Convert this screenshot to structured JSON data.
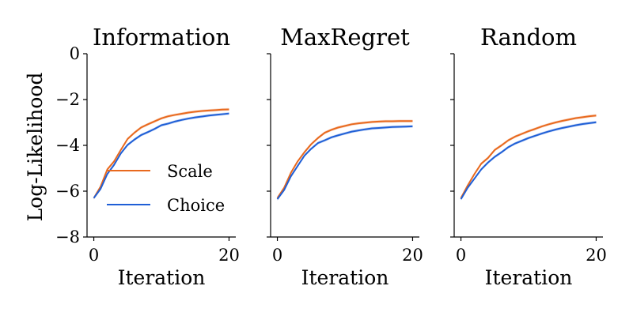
{
  "chart_data": [
    {
      "type": "line",
      "title": "Information",
      "xlabel": "Iteration",
      "ylabel": "Log-Likelihood",
      "xlim": [
        -1,
        21
      ],
      "ylim": [
        -8,
        0
      ],
      "xticks": [
        0,
        20
      ],
      "yticks": [
        0,
        -2,
        -4,
        -6,
        -8
      ],
      "ytick_labels": [
        "0",
        "−2",
        "−4",
        "−6",
        "−8"
      ],
      "xtick_labels": [
        "0",
        "20"
      ],
      "show_ytick_labels": true,
      "legend": {
        "position": "lower-right",
        "entries": [
          "Scale",
          "Choice"
        ]
      },
      "x": [
        0,
        1,
        2,
        3,
        4,
        5,
        6,
        7,
        8,
        9,
        10,
        11,
        12,
        13,
        14,
        15,
        16,
        17,
        18,
        19,
        20
      ],
      "series": [
        {
          "name": "Scale",
          "color": "#e8691e",
          "values": [
            -6.3,
            -5.8,
            -5.05,
            -4.7,
            -4.2,
            -3.72,
            -3.45,
            -3.22,
            -3.08,
            -2.95,
            -2.82,
            -2.73,
            -2.67,
            -2.62,
            -2.57,
            -2.53,
            -2.5,
            -2.48,
            -2.46,
            -2.44,
            -2.43
          ]
        },
        {
          "name": "Choice",
          "color": "#1f5fd6",
          "values": [
            -6.3,
            -5.9,
            -5.25,
            -4.85,
            -4.35,
            -3.98,
            -3.75,
            -3.55,
            -3.42,
            -3.28,
            -3.12,
            -3.05,
            -2.96,
            -2.89,
            -2.83,
            -2.78,
            -2.74,
            -2.7,
            -2.67,
            -2.64,
            -2.61
          ]
        }
      ]
    },
    {
      "type": "line",
      "title": "MaxRegret",
      "xlabel": "Iteration",
      "ylabel": "",
      "xlim": [
        -1,
        21
      ],
      "ylim": [
        -8,
        0
      ],
      "xticks": [
        0,
        20
      ],
      "yticks": [
        0,
        -2,
        -4,
        -6,
        -8
      ],
      "ytick_labels": [
        "",
        "",
        "",
        "",
        ""
      ],
      "xtick_labels": [
        "0",
        "20"
      ],
      "show_ytick_labels": false,
      "x": [
        0,
        1,
        2,
        3,
        4,
        5,
        6,
        7,
        8,
        9,
        10,
        11,
        12,
        13,
        14,
        15,
        16,
        17,
        18,
        19,
        20
      ],
      "series": [
        {
          "name": "Scale",
          "color": "#e8691e",
          "values": [
            -6.3,
            -5.85,
            -5.2,
            -4.7,
            -4.3,
            -3.95,
            -3.68,
            -3.45,
            -3.32,
            -3.22,
            -3.15,
            -3.08,
            -3.04,
            -3.01,
            -2.98,
            -2.96,
            -2.95,
            -2.95,
            -2.94,
            -2.94,
            -2.94
          ]
        },
        {
          "name": "Choice",
          "color": "#1f5fd6",
          "values": [
            -6.35,
            -5.95,
            -5.35,
            -4.9,
            -4.45,
            -4.15,
            -3.9,
            -3.78,
            -3.65,
            -3.56,
            -3.48,
            -3.4,
            -3.35,
            -3.3,
            -3.26,
            -3.24,
            -3.22,
            -3.2,
            -3.19,
            -3.18,
            -3.17
          ]
        }
      ]
    },
    {
      "type": "line",
      "title": "Random",
      "xlabel": "Iteration",
      "ylabel": "",
      "xlim": [
        -1,
        21
      ],
      "ylim": [
        -8,
        0
      ],
      "xticks": [
        0,
        20
      ],
      "yticks": [
        0,
        -2,
        -4,
        -6,
        -8
      ],
      "ytick_labels": [
        "",
        "",
        "",
        "",
        ""
      ],
      "xtick_labels": [
        "0",
        "20"
      ],
      "show_ytick_labels": false,
      "x": [
        0,
        1,
        2,
        3,
        4,
        5,
        6,
        7,
        8,
        9,
        10,
        11,
        12,
        13,
        14,
        15,
        16,
        17,
        18,
        19,
        20
      ],
      "series": [
        {
          "name": "Scale",
          "color": "#e8691e",
          "values": [
            -6.3,
            -5.75,
            -5.25,
            -4.8,
            -4.55,
            -4.2,
            -4.0,
            -3.78,
            -3.62,
            -3.5,
            -3.38,
            -3.28,
            -3.17,
            -3.08,
            -3.0,
            -2.93,
            -2.87,
            -2.81,
            -2.77,
            -2.73,
            -2.7
          ]
        },
        {
          "name": "Choice",
          "color": "#1f5fd6",
          "values": [
            -6.35,
            -5.85,
            -5.45,
            -5.05,
            -4.75,
            -4.5,
            -4.3,
            -4.08,
            -3.92,
            -3.8,
            -3.68,
            -3.58,
            -3.48,
            -3.39,
            -3.31,
            -3.24,
            -3.18,
            -3.12,
            -3.07,
            -3.03,
            -2.99
          ]
        }
      ]
    }
  ]
}
